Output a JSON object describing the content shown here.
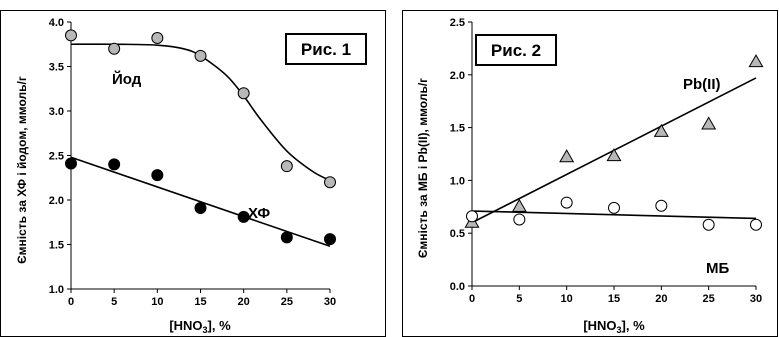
{
  "chart_data": [
    {
      "type": "scatter",
      "title": "Рис. 1",
      "xlabel_base": "[HNO",
      "xlabel_sub": "3",
      "xlabel_tail": "], %",
      "ylabel": "Ємність за ХФ і йодом, ммоль/г",
      "xlim": [
        0,
        30
      ],
      "ylim": [
        1.0,
        4.0
      ],
      "xticks": [
        0,
        5,
        10,
        15,
        20,
        25,
        30
      ],
      "yticks": [
        1.0,
        1.5,
        2.0,
        2.5,
        3.0,
        3.5,
        4.0
      ],
      "ytick_labels": [
        "1.0",
        "1.5",
        "2.0",
        "2.5",
        "3.0",
        "3.5",
        "4.0"
      ],
      "grid": false,
      "series": [
        {
          "name": "Йод",
          "marker": "circle",
          "color": "#b8b8b8",
          "x": [
            0,
            5,
            10,
            15,
            20,
            25,
            30
          ],
          "y": [
            3.85,
            3.7,
            3.82,
            3.62,
            3.2,
            2.38,
            2.2
          ],
          "fit": "curve",
          "fit_points": [
            [
              0,
              3.75
            ],
            [
              5,
              3.75
            ],
            [
              10,
              3.74
            ],
            [
              13,
              3.7
            ],
            [
              15,
              3.62
            ],
            [
              18,
              3.4
            ],
            [
              20,
              3.17
            ],
            [
              22,
              2.9
            ],
            [
              25,
              2.55
            ],
            [
              28,
              2.32
            ],
            [
              30,
              2.22
            ]
          ]
        },
        {
          "name": "ХФ",
          "marker": "circle",
          "color": "#000000",
          "x": [
            0,
            5,
            10,
            15,
            20,
            25,
            30
          ],
          "y": [
            2.41,
            2.4,
            2.28,
            1.91,
            1.81,
            1.58,
            1.56
          ],
          "fit": "linear",
          "fit_points": [
            [
              0,
              2.48
            ],
            [
              30,
              1.48
            ]
          ]
        }
      ]
    },
    {
      "type": "scatter",
      "title": "Рис. 2",
      "xlabel_base": "[HNO",
      "xlabel_sub": "3",
      "xlabel_tail": "], %",
      "ylabel": "Ємність за МБ і Pb(II), ммоль/г",
      "xlim": [
        0,
        30
      ],
      "ylim": [
        0.0,
        2.5
      ],
      "xticks": [
        0,
        5,
        10,
        15,
        20,
        25,
        30
      ],
      "yticks": [
        0.0,
        0.5,
        1.0,
        1.5,
        2.0,
        2.5
      ],
      "ytick_labels": [
        "0.0",
        "0.5",
        "1.0",
        "1.5",
        "2.0",
        "2.5"
      ],
      "grid": false,
      "series": [
        {
          "name": "Pb(II)",
          "marker": "triangle",
          "color": "#b8b8b8",
          "x": [
            0,
            5,
            10,
            15,
            20,
            25,
            30
          ],
          "y": [
            0.6,
            0.75,
            1.22,
            1.23,
            1.46,
            1.53,
            2.12
          ],
          "fit": "linear",
          "fit_points": [
            [
              0,
              0.6
            ],
            [
              30,
              1.97
            ]
          ]
        },
        {
          "name": "МБ",
          "marker": "circle-open",
          "color": "#ffffff",
          "x": [
            0,
            5,
            10,
            15,
            20,
            25,
            30
          ],
          "y": [
            0.66,
            0.63,
            0.79,
            0.74,
            0.76,
            0.58,
            0.58
          ],
          "fit": "linear",
          "fit_points": [
            [
              0,
              0.71
            ],
            [
              30,
              0.64
            ]
          ]
        }
      ]
    }
  ]
}
